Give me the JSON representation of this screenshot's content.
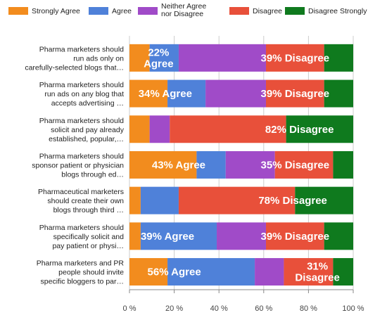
{
  "chart_data": {
    "type": "bar",
    "orientation": "horizontal",
    "stacked": true,
    "xlim": [
      0,
      100
    ],
    "grid": true,
    "legend_position": "top",
    "xticks": [
      "0 %",
      "20 %",
      "40 %",
      "60 %",
      "80 %",
      "100 %"
    ],
    "categories": [
      [
        "Pharma marketers should",
        "run ads only on",
        "carefully-selected blogs that…"
      ],
      [
        "Pharma marketers should",
        "run ads on any blog that",
        "accepts advertising …"
      ],
      [
        "Pharma marketers should",
        "solicit and pay already",
        "established, popular,…"
      ],
      [
        "Pharma marketers should",
        "sponsor patient or physician",
        "blogs through ed…"
      ],
      [
        "Pharmaceutical marketers",
        "should create their own",
        "blogs through third …"
      ],
      [
        "Pharma marketers should",
        "specifically solicit and",
        "pay patient or physi…"
      ],
      [
        "Pharma marketers and PR",
        "people should invite",
        "specific bloggers to par…"
      ]
    ],
    "series": [
      {
        "name": "Strongly Agree",
        "color": "#f28c1e",
        "values": [
          9,
          17,
          9,
          30,
          5,
          5,
          17
        ]
      },
      {
        "name": "Agree",
        "color": "#4f81d9",
        "values": [
          13,
          17,
          0,
          13,
          17,
          34,
          39
        ]
      },
      {
        "name": [
          "Neither Agree",
          "nor Disagree"
        ],
        "color": "#a04bc8",
        "values": [
          39,
          27,
          9,
          22,
          0,
          22,
          13
        ]
      },
      {
        "name": "Disagree",
        "color": "#e8503a",
        "values": [
          26,
          26,
          52,
          26,
          52,
          26,
          22
        ]
      },
      {
        "name": "Disagree Strongly",
        "color": "#0f7a1e",
        "values": [
          13,
          13,
          30,
          9,
          26,
          13,
          9
        ]
      }
    ],
    "annotations": [
      {
        "row": 0,
        "lines": [
          "22%",
          "Agree"
        ],
        "center": 13
      },
      {
        "row": 0,
        "lines": [
          "39% Disagree"
        ],
        "center": 74
      },
      {
        "row": 1,
        "lines": [
          "34% Agree"
        ],
        "center": 16
      },
      {
        "row": 1,
        "lines": [
          "39% Disagree"
        ],
        "center": 74
      },
      {
        "row": 2,
        "lines": [
          "82% Disagree"
        ],
        "center": 76
      },
      {
        "row": 3,
        "lines": [
          "43% Agree"
        ],
        "center": 22
      },
      {
        "row": 3,
        "lines": [
          "35% Disagree"
        ],
        "center": 74
      },
      {
        "row": 4,
        "lines": [
          "78% Disagree"
        ],
        "center": 73
      },
      {
        "row": 5,
        "lines": [
          "39% Agree"
        ],
        "center": 17
      },
      {
        "row": 5,
        "lines": [
          "39% Disagree"
        ],
        "center": 74
      },
      {
        "row": 6,
        "lines": [
          "56% Agree"
        ],
        "center": 20
      },
      {
        "row": 6,
        "lines": [
          "31%",
          "Disagree"
        ],
        "center": 84
      }
    ]
  }
}
